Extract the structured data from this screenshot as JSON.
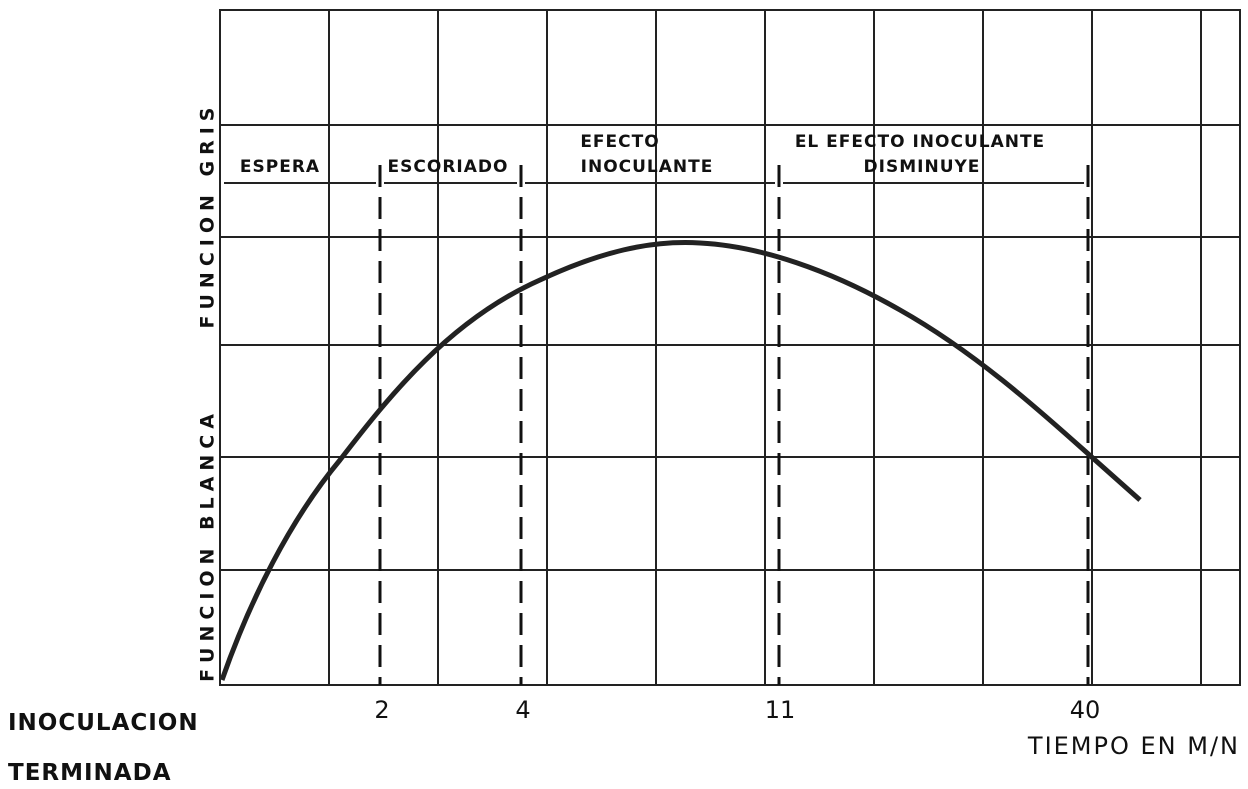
{
  "y_axis_labels": [
    "FUNCION GRIS",
    "FUNCION BLANCA"
  ],
  "phases": [
    {
      "lines": [
        "ESPERA"
      ]
    },
    {
      "lines": [
        "ESCORIADO"
      ]
    },
    {
      "lines": [
        "EFECTO",
        "INOCULANTE"
      ]
    },
    {
      "lines": [
        "EL EFECTO INOCULANTE",
        "DISMINUYE"
      ]
    }
  ],
  "x_labels": [
    "2",
    "4",
    "11",
    "40"
  ],
  "start_label": [
    "INOCULACION",
    "TERMINADA"
  ],
  "x_axis_title": "TIEMPO EN M/N"
}
